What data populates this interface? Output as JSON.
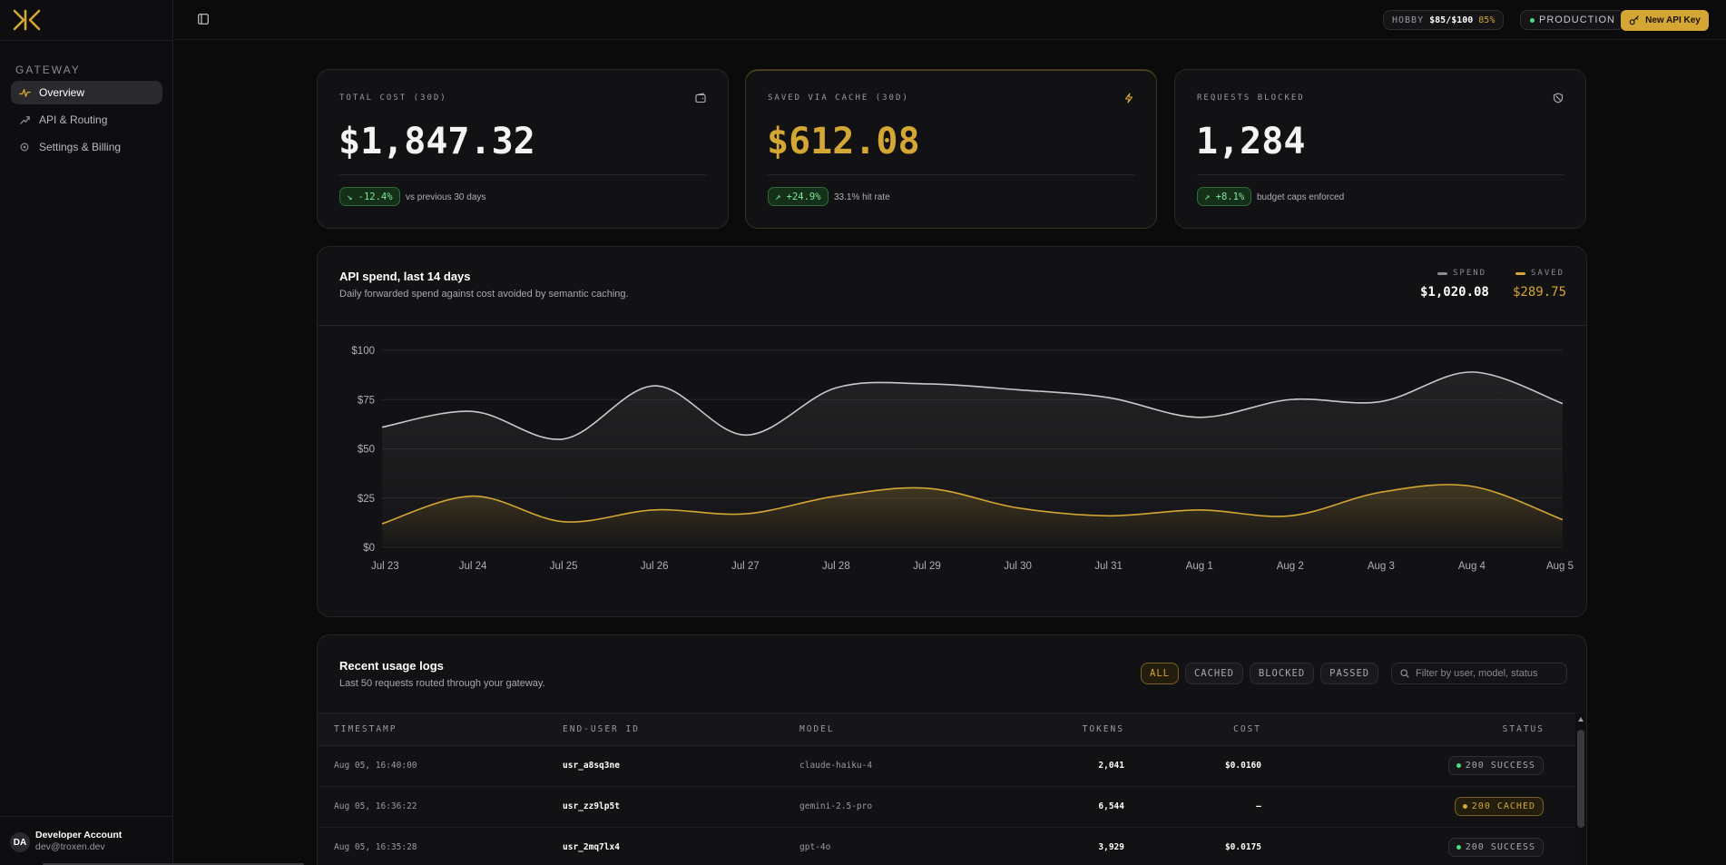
{
  "sidebar": {
    "section_label": "GATEWAY",
    "items": [
      {
        "label": "Overview",
        "icon": "activity-icon"
      },
      {
        "label": "API & Routing",
        "icon": "routing-icon"
      },
      {
        "label": "Settings & Billing",
        "icon": "gear-icon"
      }
    ],
    "account": {
      "initials": "DA",
      "name": "Developer Account",
      "email": "dev@troxen.dev"
    }
  },
  "topbar": {
    "plan_name": "HOBBY",
    "plan_usage": "$85/$100",
    "plan_percent": "85%",
    "environment": "PRODUCTION",
    "new_key_label": "New API Key"
  },
  "stats": [
    {
      "label": "TOTAL COST (30D)",
      "value": "$1,847.32",
      "delta": "↘ -12.4%",
      "note": "vs previous 30 days",
      "icon": "wallet-icon"
    },
    {
      "label": "SAVED VIA CACHE (30D)",
      "value": "$612.08",
      "delta": "↗ +24.9%",
      "note": "33.1% hit rate",
      "icon": "bolt-icon"
    },
    {
      "label": "REQUESTS BLOCKED",
      "value": "1,284",
      "delta": "↗ +8.1%",
      "note": "budget caps enforced",
      "icon": "shield-icon"
    }
  ],
  "chart": {
    "title": "API spend, last 14 days",
    "subtitle": "Daily forwarded spend against cost avoided by semantic caching.",
    "legend_spend_label": "SPEND",
    "legend_saved_label": "SAVED",
    "spend_total": "$1,020.08",
    "saved_total": "$289.75"
  },
  "chart_data": {
    "type": "area",
    "x": [
      "Jul 23",
      "Jul 24",
      "Jul 25",
      "Jul 26",
      "Jul 27",
      "Jul 28",
      "Jul 29",
      "Jul 30",
      "Jul 31",
      "Aug 1",
      "Aug 2",
      "Aug 3",
      "Aug 4",
      "Aug 5"
    ],
    "y_ticks": [
      "$0",
      "$25",
      "$50",
      "$75",
      "$100"
    ],
    "ylim": [
      0,
      100
    ],
    "series": [
      {
        "name": "SPEND",
        "color": "#c9c9cd",
        "values": [
          61,
          69,
          55,
          82,
          57,
          81,
          83,
          80,
          76,
          66,
          75,
          74,
          89,
          73
        ]
      },
      {
        "name": "SAVED",
        "color": "#d4a634",
        "values": [
          12,
          26,
          13,
          19,
          17,
          26,
          30,
          20,
          16,
          19,
          16,
          28,
          31,
          14
        ]
      }
    ],
    "grid": true
  },
  "logs": {
    "title": "Recent usage logs",
    "subtitle": "Last 50 requests routed through your gateway.",
    "filters": [
      "ALL",
      "CACHED",
      "BLOCKED",
      "PASSED"
    ],
    "active_filter": "ALL",
    "search_placeholder": "Filter by user, model, status",
    "columns": [
      "TIMESTAMP",
      "END-USER ID",
      "MODEL",
      "TOKENS",
      "COST",
      "STATUS"
    ],
    "rows": [
      {
        "ts": "Aug 05, 16:40:00",
        "user": "usr_a8sq3ne",
        "model": "claude-haiku-4",
        "tokens": "2,041",
        "cost": "$0.0160",
        "status": "200 SUCCESS",
        "kind": "success"
      },
      {
        "ts": "Aug 05, 16:36:22",
        "user": "usr_zz9lp5t",
        "model": "gemini-2.5-pro",
        "tokens": "6,544",
        "cost": "—",
        "status": "200 CACHED",
        "kind": "cached"
      },
      {
        "ts": "Aug 05, 16:35:28",
        "user": "usr_2mq7lx4",
        "model": "gpt-4o",
        "tokens": "3,929",
        "cost": "$0.0175",
        "status": "200 SUCCESS",
        "kind": "success"
      }
    ]
  },
  "colors": {
    "accent": "#d4a634",
    "success": "#4ade80",
    "background": "#0b0b0c"
  }
}
